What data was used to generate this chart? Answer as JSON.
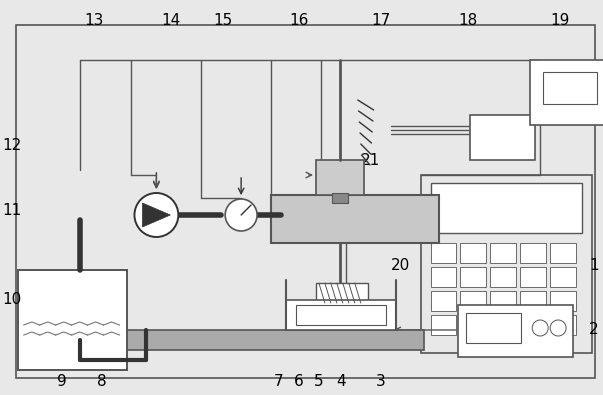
{
  "fig_width": 6.03,
  "fig_height": 3.95,
  "dpi": 100,
  "bg_color": "#e8e8e8",
  "lc": "#555555",
  "lc_dark": "#333333"
}
